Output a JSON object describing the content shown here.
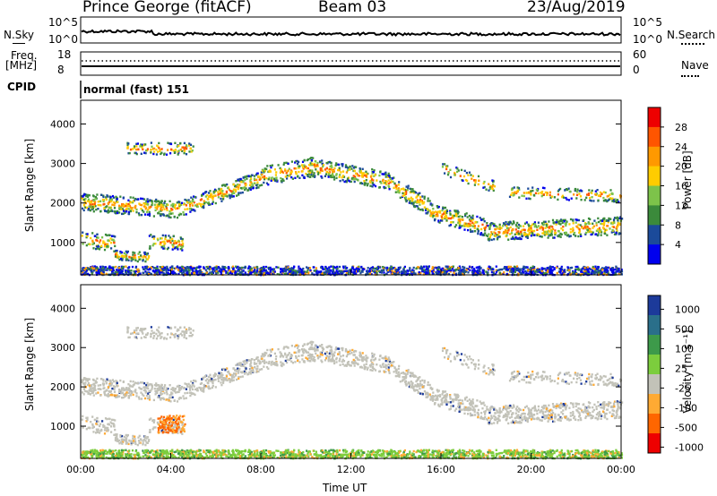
{
  "header": {
    "station": "Prince George (fitACF)",
    "beam": "Beam 03",
    "date": "23/Aug/2019"
  },
  "strip": {
    "nsky_label": "N.Sky",
    "nsky_ticks": [
      "10^5",
      "10^0"
    ],
    "nsearch_label": "N.Search",
    "nsearch_ticks": [
      "10^5",
      "10^0"
    ],
    "freq_label_line1": "Freq.",
    "freq_label_line2": "[MHz]",
    "freq_ticks": [
      "18",
      "8"
    ],
    "nave_label": "Nave",
    "nave_ticks": [
      "60",
      "0"
    ],
    "cpid_label": "CPID",
    "cpid_value": "normal (fast) 151"
  },
  "chart_data": [
    {
      "type": "heatmap",
      "panel": "power",
      "ylabel": "Slant Range [km]",
      "yticks": [
        1000,
        2000,
        3000,
        4000
      ],
      "ylim": [
        180,
        4600
      ],
      "colorbar_label": "Power [dB]",
      "colorbar_ticks": [
        "28",
        "24",
        "20",
        "16",
        "12",
        "8",
        "4"
      ],
      "colorbar_colors": [
        "#ee0000",
        "#ff5500",
        "#ff9900",
        "#ffcc00",
        "#7dc34a",
        "#3b8a3b",
        "#1b4a9a",
        "#0000ee"
      ]
    },
    {
      "type": "heatmap",
      "panel": "velocity",
      "ylabel": "Slant Range [km]",
      "yticks": [
        1000,
        2000,
        3000,
        4000
      ],
      "ylim": [
        180,
        4600
      ],
      "colorbar_label": "Velocity [m s⁻¹]",
      "colorbar_ticks": [
        "1000",
        "500",
        "100",
        "25",
        "-25",
        "-100",
        "-500",
        "-1000"
      ],
      "colorbar_colors": [
        "#1c3a9a",
        "#2a6f8a",
        "#3d9a4a",
        "#7ccd3d",
        "#c2c2b8",
        "#ffaa33",
        "#ff6600",
        "#ee0000"
      ]
    }
  ],
  "time_axis": {
    "label": "Time UT",
    "ticks": [
      "00:00",
      "04:00",
      "08:00",
      "12:00",
      "16:00",
      "20:00",
      "00:00"
    ]
  }
}
